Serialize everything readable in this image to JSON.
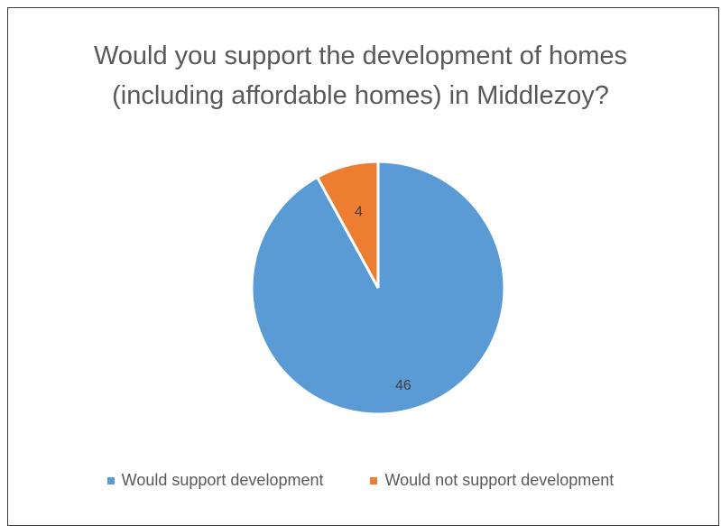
{
  "chart_data": {
    "type": "pie",
    "title": [
      "Would you support the development of homes",
      "(including affordable homes) in Middlezoy?"
    ],
    "categories": [
      "Would support development",
      "Would not support development"
    ],
    "values": [
      46,
      4
    ],
    "colors": [
      "#5b9bd5",
      "#ed7d31"
    ],
    "data_labels_shown": true,
    "legend_position": "bottom",
    "start_angle_deg": 0,
    "direction": "clockwise"
  }
}
